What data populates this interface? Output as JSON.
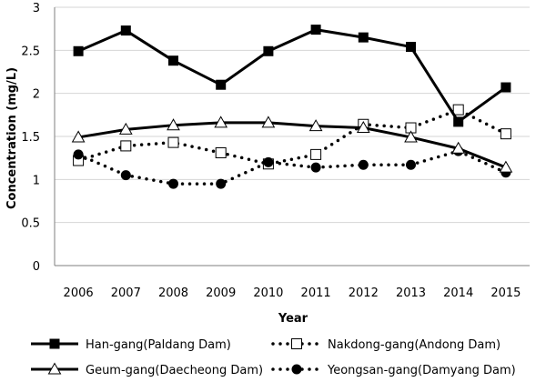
{
  "chart_data": {
    "type": "line",
    "title": "",
    "xlabel": "Year",
    "ylabel": "Concentration (mg/L)",
    "ylim": [
      0,
      3
    ],
    "yticks": [
      "0",
      "0.5",
      "1",
      "1.5",
      "2",
      "2.5",
      "3"
    ],
    "grid": "horizontal",
    "legend_position": "bottom",
    "categories": [
      "2006",
      "2007",
      "2008",
      "2009",
      "2010",
      "2011",
      "2012",
      "2013",
      "2014",
      "2015"
    ],
    "series": [
      {
        "name": "Han-gang(Paldang Dam)",
        "values": [
          2.49,
          2.73,
          2.38,
          2.1,
          2.49,
          2.74,
          2.65,
          2.54,
          1.67,
          2.07
        ],
        "line": "solid",
        "marker": "filled-square",
        "color": "#000000"
      },
      {
        "name": "Nakdong-gang(Andong Dam)",
        "values": [
          1.22,
          1.39,
          1.43,
          1.31,
          1.18,
          1.29,
          1.64,
          1.6,
          1.81,
          1.53
        ],
        "line": "dotted",
        "marker": "open-square",
        "color": "#000000"
      },
      {
        "name": "Geum-gang(Daecheong Dam)",
        "values": [
          1.49,
          1.58,
          1.63,
          1.66,
          1.66,
          1.62,
          1.6,
          1.49,
          1.36,
          1.14
        ],
        "line": "solid",
        "marker": "open-triangle",
        "color": "#000000"
      },
      {
        "name": "Yeongsan-gang(Damyang Dam)",
        "values": [
          1.29,
          1.05,
          0.95,
          0.95,
          1.2,
          1.14,
          1.17,
          1.17,
          1.33,
          1.08
        ],
        "line": "dotted",
        "marker": "filled-circle",
        "color": "#000000"
      }
    ]
  }
}
